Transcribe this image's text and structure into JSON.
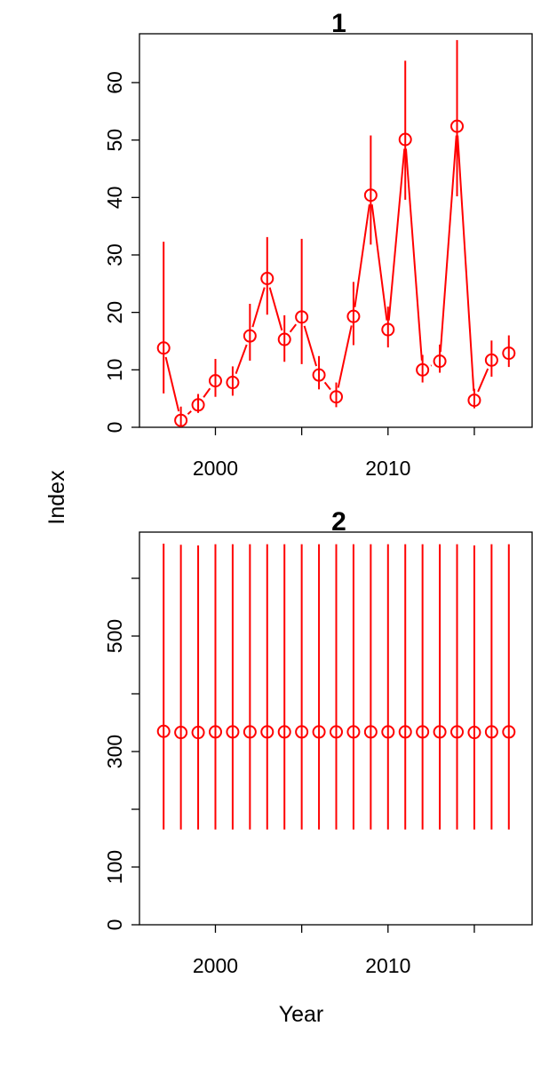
{
  "figure": {
    "ylabel": "Index",
    "xlabel": "Year"
  },
  "chart_data": [
    {
      "type": "scatter",
      "title": "1",
      "xlabel": "",
      "ylabel": "",
      "xlim": [
        1995.6,
        2018.4
      ],
      "ylim": [
        0,
        68.5
      ],
      "x_ticks": [
        2000,
        2010
      ],
      "y_ticks": [
        0,
        10,
        20,
        30,
        40,
        50,
        60
      ],
      "x_minor_ticks": [
        2000,
        2005,
        2010,
        2015
      ],
      "connected": true,
      "color": "#ff0000",
      "grid": false,
      "x": [
        1997,
        1998,
        1999,
        2000,
        2001,
        2002,
        2003,
        2004,
        2005,
        2006,
        2007,
        2008,
        2009,
        2010,
        2011,
        2012,
        2013,
        2014,
        2015,
        2016,
        2017
      ],
      "y": [
        13.8,
        1.2,
        3.9,
        8.1,
        7.8,
        15.9,
        25.9,
        15.3,
        19.2,
        9.1,
        5.3,
        19.3,
        40.4,
        17.0,
        50.1,
        10.0,
        11.5,
        52.4,
        4.7,
        11.7,
        12.9
      ],
      "lower": [
        5.9,
        0.3,
        2.5,
        5.3,
        5.5,
        11.6,
        19.6,
        11.4,
        11.0,
        6.6,
        3.5,
        14.3,
        31.8,
        13.9,
        39.6,
        7.8,
        9.5,
        40.2,
        3.3,
        8.8,
        10.5
      ],
      "upper": [
        32.3,
        3.6,
        5.8,
        11.9,
        10.6,
        21.5,
        33.1,
        19.5,
        32.8,
        12.4,
        7.8,
        25.3,
        50.8,
        21.0,
        63.8,
        12.6,
        14.4,
        67.4,
        6.7,
        15.1,
        16.0
      ]
    },
    {
      "type": "scatter",
      "title": "2",
      "xlabel": "",
      "ylabel": "",
      "xlim": [
        1995.6,
        2018.4
      ],
      "ylim": [
        0,
        680
      ],
      "x_ticks": [
        2000,
        2010
      ],
      "y_ticks": [
        0,
        100,
        300,
        500
      ],
      "y_minor_ticks": [
        0,
        100,
        200,
        300,
        400,
        500,
        600
      ],
      "x_minor_ticks": [
        2000,
        2005,
        2010,
        2015
      ],
      "connected": false,
      "color": "#ff0000",
      "grid": false,
      "x": [
        1997,
        1998,
        1999,
        2000,
        2001,
        2002,
        2003,
        2004,
        2005,
        2006,
        2007,
        2008,
        2009,
        2010,
        2011,
        2012,
        2013,
        2014,
        2015,
        2016,
        2017
      ],
      "y": [
        335,
        333,
        333,
        334,
        334,
        334,
        334,
        334,
        334,
        334,
        334,
        334,
        334,
        334,
        334,
        334,
        334,
        334,
        333,
        334,
        334
      ],
      "lower": [
        165,
        165,
        165,
        165,
        165,
        165,
        165,
        165,
        165,
        165,
        165,
        165,
        165,
        165,
        165,
        165,
        165,
        165,
        165,
        165,
        165
      ],
      "upper": [
        660,
        658,
        657,
        659,
        659,
        659,
        659,
        659,
        659,
        659,
        659,
        659,
        659,
        659,
        659,
        659,
        659,
        659,
        657,
        659,
        659
      ]
    }
  ]
}
